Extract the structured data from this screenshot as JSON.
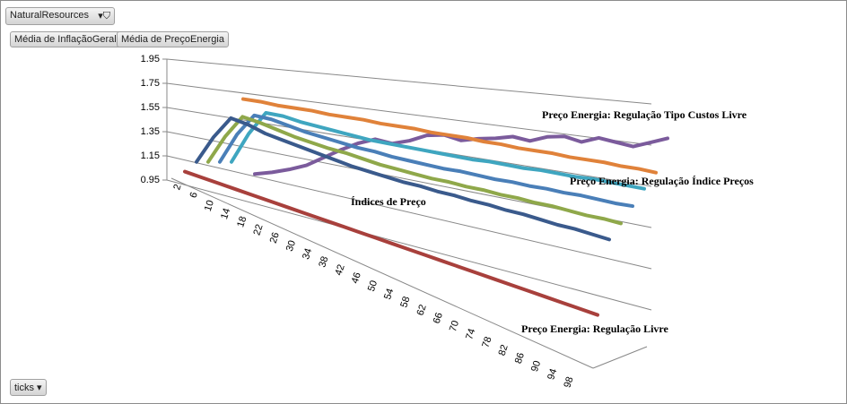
{
  "filter_button": "NaturalResources",
  "value_buttons": [
    "Média de InflaçãoGeral",
    "Média de PreçoEnergia"
  ],
  "axis_button": "ticks",
  "chart_data": {
    "type": "line3d",
    "annotations": [
      "Preço Energia: Regulação Tipo Custos Livre",
      "Preço Energia: Regulação Índice Preços",
      "Índices de Preço",
      "Preço Energia: Regulação Livre"
    ],
    "categories": [
      2,
      6,
      10,
      14,
      18,
      22,
      26,
      30,
      34,
      38,
      42,
      46,
      50,
      54,
      58,
      62,
      66,
      70,
      74,
      78,
      82,
      86,
      90,
      94,
      98
    ],
    "ylim": [
      0.95,
      1.95
    ],
    "yticks": [
      0.95,
      1.15,
      1.35,
      1.55,
      1.75,
      1.95
    ],
    "grid": true,
    "series": [
      {
        "color": "#a8403c",
        "values": [
          1.02,
          1.02,
          1.02,
          1.02,
          1.02,
          1.02,
          1.02,
          1.02,
          1.02,
          1.02,
          1.02,
          1.02,
          1.02,
          1.02,
          1.02,
          1.02,
          1.02,
          1.02,
          1.02,
          1.02,
          1.02,
          1.02,
          1.02,
          1.02,
          1.02
        ]
      },
      {
        "color": "#3a5a8c",
        "values": [
          1.1,
          1.35,
          1.55,
          1.54,
          1.51,
          1.5,
          1.49,
          1.48,
          1.47,
          1.46,
          1.46,
          1.46,
          1.46,
          1.47,
          1.47,
          1.48,
          1.48,
          1.49,
          1.49,
          1.5,
          1.5,
          1.5,
          1.51,
          1.51,
          1.51
        ]
      },
      {
        "color": "#8fa84a",
        "values": [
          1.1,
          1.35,
          1.55,
          1.54,
          1.52,
          1.5,
          1.49,
          1.48,
          1.48,
          1.47,
          1.46,
          1.46,
          1.46,
          1.46,
          1.47,
          1.47,
          1.48,
          1.48,
          1.49,
          1.49,
          1.5,
          1.5,
          1.5,
          1.51,
          1.51
        ]
      },
      {
        "color": "#4a7fb8",
        "values": [
          1.1,
          1.36,
          1.55,
          1.55,
          1.53,
          1.51,
          1.5,
          1.49,
          1.48,
          1.48,
          1.47,
          1.47,
          1.47,
          1.47,
          1.48,
          1.48,
          1.48,
          1.49,
          1.49,
          1.5,
          1.5,
          1.51,
          1.51,
          1.51,
          1.52
        ]
      },
      {
        "color": "#3fa6c0",
        "values": [
          1.1,
          1.36,
          1.56,
          1.56,
          1.54,
          1.53,
          1.52,
          1.51,
          1.5,
          1.5,
          1.5,
          1.5,
          1.5,
          1.5,
          1.5,
          1.51,
          1.51,
          1.51,
          1.52,
          1.52,
          1.52,
          1.53,
          1.53,
          1.53,
          1.53
        ]
      },
      {
        "color": "#e0823a",
        "values": [
          1.62,
          1.62,
          1.61,
          1.61,
          1.61,
          1.6,
          1.6,
          1.6,
          1.59,
          1.59,
          1.59,
          1.58,
          1.58,
          1.58,
          1.57,
          1.57,
          1.56,
          1.56,
          1.56,
          1.55,
          1.55,
          1.55,
          1.54,
          1.54,
          1.53
        ]
      },
      {
        "color": "#7b5b9c",
        "values": [
          1.0,
          1.03,
          1.07,
          1.12,
          1.2,
          1.28,
          1.35,
          1.4,
          1.38,
          1.42,
          1.48,
          1.5,
          1.47,
          1.5,
          1.52,
          1.55,
          1.53,
          1.58,
          1.6,
          1.57,
          1.62,
          1.6,
          1.58,
          1.63,
          1.68
        ]
      }
    ]
  }
}
